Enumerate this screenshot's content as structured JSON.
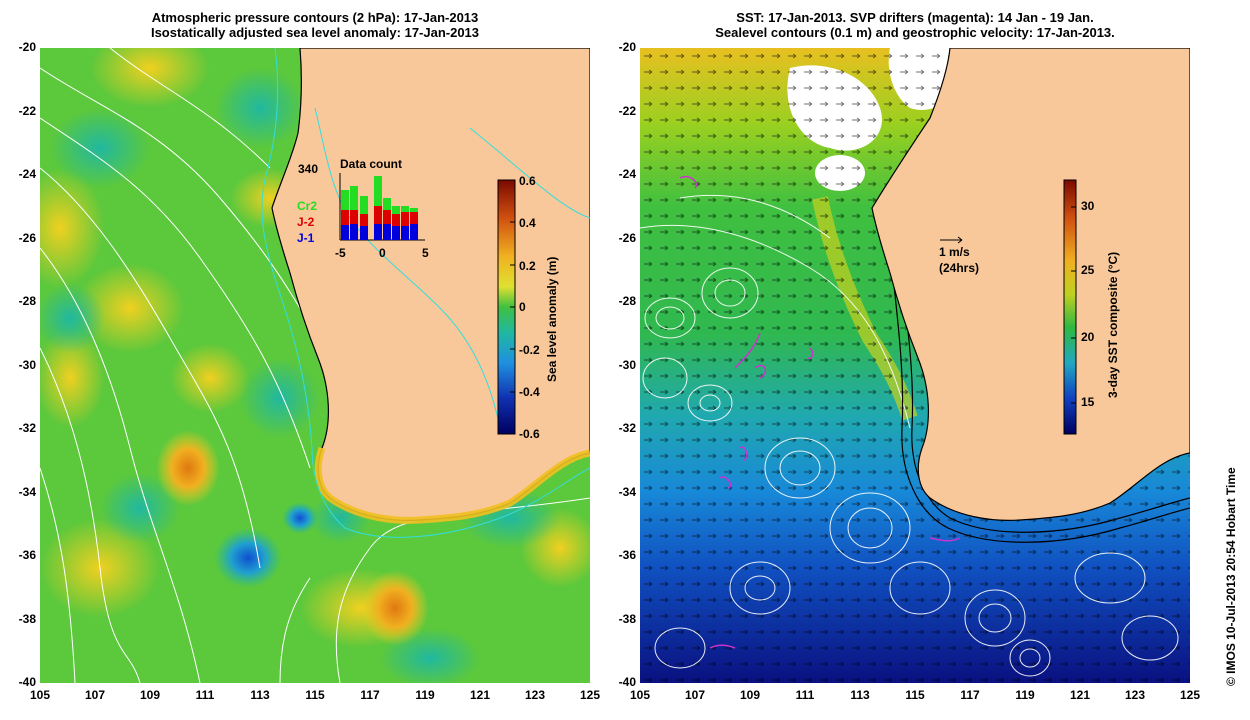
{
  "left_panel": {
    "title_line1": "Atmospheric pressure contours (2 hPa): 17-Jan-2013",
    "title_line2": "Isostatically adjusted sea level anomaly: 17-Jan-2013",
    "colorbar": {
      "label": "Sea level anomaly (m)",
      "ticks": [
        "0.6",
        "0.4",
        "0.2",
        "0",
        "-0.2",
        "-0.4",
        "-0.6"
      ],
      "range": [
        -0.6,
        0.6
      ]
    },
    "inset": {
      "count_label": "340",
      "title": "Data count",
      "series": [
        {
          "name": "Cr2",
          "color": "#22dd22"
        },
        {
          "name": "J-2",
          "color": "#dd0000"
        },
        {
          "name": "J-1",
          "color": "#0000dd"
        }
      ],
      "x_ticks": [
        "-5",
        "0",
        "5"
      ]
    }
  },
  "right_panel": {
    "title_line1": "SST: 17-Jan-2013. SVP drifters (magenta): 14 Jan - 19 Jan.",
    "title_line2": "Sealevel contours (0.1 m) and geostrophic velocity: 17-Jan-2013.",
    "velocity_scale_line1": "1 m/s",
    "velocity_scale_line2": "(24hrs)",
    "colorbar": {
      "label": "3-day SST composite (°C)",
      "ticks": [
        "30",
        "25",
        "20",
        "15"
      ],
      "range": [
        12,
        32
      ]
    }
  },
  "axes": {
    "latitude_ticks": [
      "-20",
      "-22",
      "-24",
      "-26",
      "-28",
      "-30",
      "-32",
      "-34",
      "-36",
      "-38",
      "-40"
    ],
    "longitude_ticks": [
      "105",
      "107",
      "109",
      "111",
      "113",
      "115",
      "117",
      "119",
      "121",
      "123",
      "125"
    ],
    "lat_range": [
      -40,
      -20
    ],
    "lon_range": [
      105,
      125
    ]
  },
  "credit": "© IMOS 10-Jul-2013 20:54 Hobart Time",
  "colors": {
    "land": "#f9c89a",
    "coastline": "#000000",
    "isobath": "#33dddd",
    "pressure_contour": "#ffffff",
    "drifter": "#cc33cc"
  }
}
